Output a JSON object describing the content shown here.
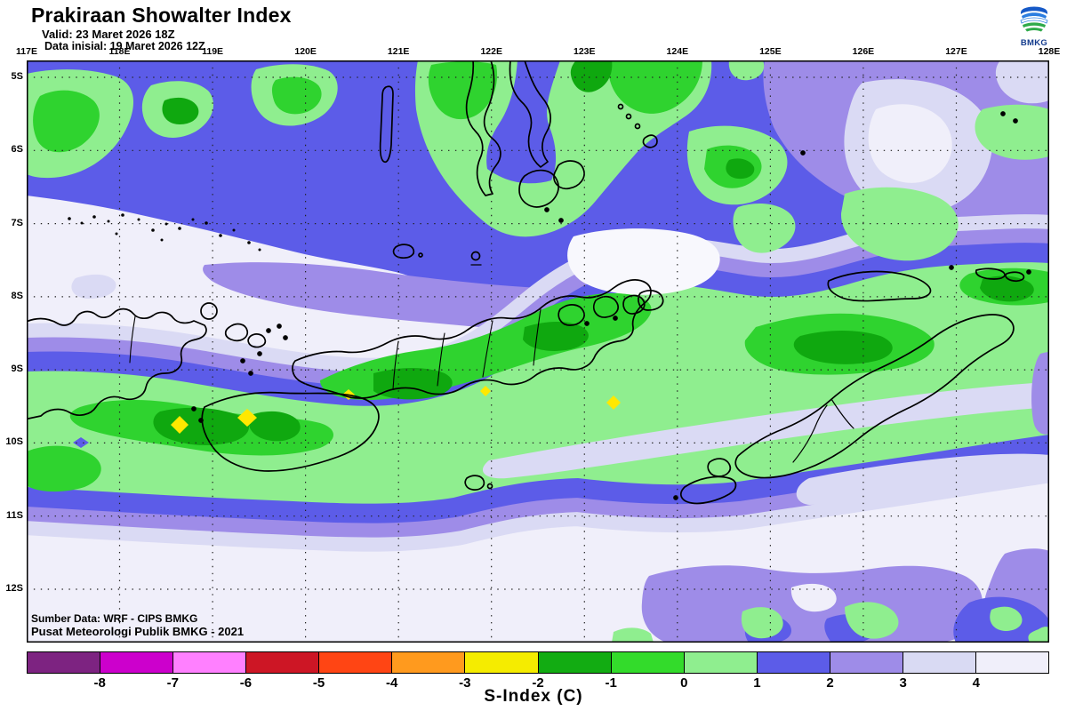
{
  "header": {
    "title": "Prakiraan Showalter Index",
    "valid": "Valid: 23 Maret 2026 18Z",
    "init": "Data inisial: 19 Maret 2026 12Z"
  },
  "logo": {
    "label": "BMKG"
  },
  "axes": {
    "x_ticks": [
      "117E",
      "118E",
      "119E",
      "120E",
      "121E",
      "122E",
      "123E",
      "124E",
      "125E",
      "126E",
      "127E",
      "128E"
    ],
    "y_ticks": [
      "5S",
      "6S",
      "7S",
      "8S",
      "9S",
      "10S",
      "11S",
      "12S"
    ]
  },
  "credits": {
    "line1": "Sumber Data: WRF - CIPS BMKG",
    "line2": "Pusat Meteorologi Publik BMKG - 2021"
  },
  "colorbar": {
    "title": "S-Index (C)",
    "tick_labels": [
      "-8",
      "-7",
      "-6",
      "-5",
      "-4",
      "-3",
      "-2",
      "-1",
      "0",
      "1",
      "2",
      "3",
      "4"
    ],
    "segment_colors": [
      "#7D2381",
      "#CC00CC",
      "#FF80FF",
      "#CD1625",
      "#FF4514",
      "#FF9A1E",
      "#F5EC00",
      "#12AC12",
      "#33DB2B",
      "#8FEE8F",
      "#5C5CE8",
      "#9E8CE8",
      "#D9DAF3",
      "#F0EFFA"
    ],
    "field_colors": {
      "blue_violet": "#5C5CE8",
      "medium_purple": "#9E8CE8",
      "pale_lavender": "#DADAF4",
      "palest": "#F0EFFA",
      "light_green": "#8FEE8F",
      "bright_green": "#2FD32F",
      "dark_green": "#0FA80F",
      "yellow": "#FFE800"
    }
  }
}
